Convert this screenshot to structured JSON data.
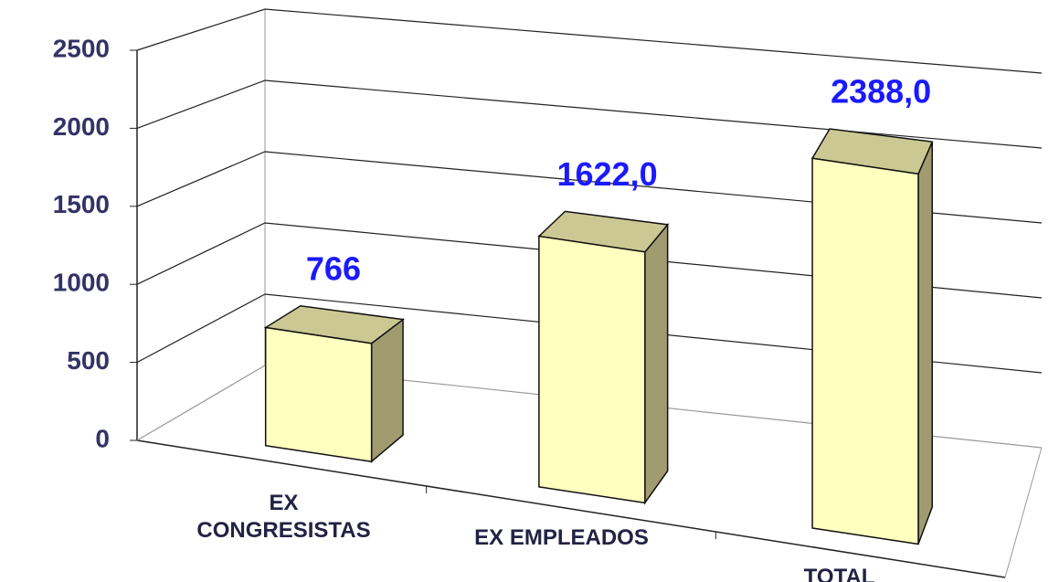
{
  "chart_data": {
    "type": "bar3d",
    "categories": [
      "EX CONGRESISTAS",
      "EX EMPLEADOS",
      "TOTAL"
    ],
    "values": [
      766,
      1622,
      2388
    ],
    "value_labels": [
      "766",
      "1622,0",
      "2388,0"
    ],
    "color": "#ffffc0",
    "ylim": [
      0,
      2500
    ],
    "yticks": [
      0,
      500,
      1000,
      1500,
      2000,
      2500
    ],
    "grid": true
  }
}
